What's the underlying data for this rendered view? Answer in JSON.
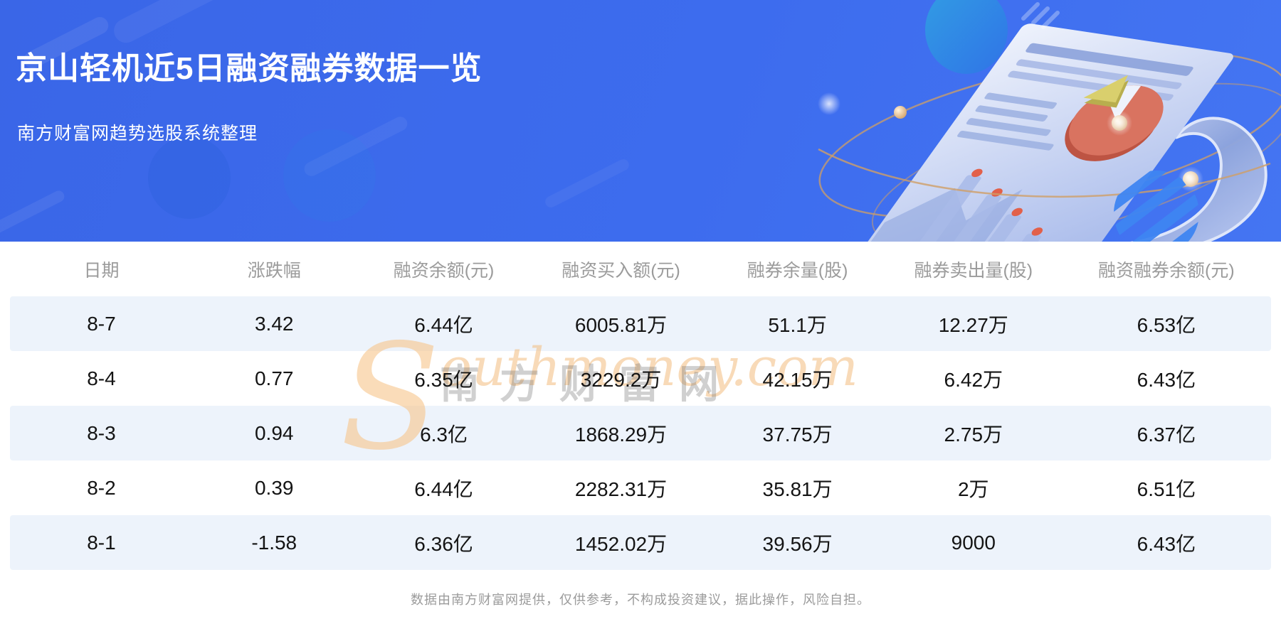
{
  "banner": {
    "title": "京山轻机近5日融资融券数据一览",
    "subtitle": "南方财富网趋势选股系统整理"
  },
  "table": {
    "columns": [
      "日期",
      "涨跌幅",
      "融资余额(元)",
      "融资买入额(元)",
      "融券余量(股)",
      "融券卖出量(股)",
      "融资融券余额(元)"
    ],
    "rows": [
      [
        "8-7",
        "3.42",
        "6.44亿",
        "6005.81万",
        "51.1万",
        "12.27万",
        "6.53亿"
      ],
      [
        "8-4",
        "0.77",
        "6.35亿",
        "3229.2万",
        "42.15万",
        "6.42万",
        "6.43亿"
      ],
      [
        "8-3",
        "0.94",
        "6.3亿",
        "1868.29万",
        "37.75万",
        "2.75万",
        "6.37亿"
      ],
      [
        "8-2",
        "0.39",
        "6.44亿",
        "2282.31万",
        "35.81万",
        "2万",
        "6.51亿"
      ],
      [
        "8-1",
        "-1.58",
        "6.36亿",
        "1452.02万",
        "39.56万",
        "9000",
        "6.43亿"
      ]
    ]
  },
  "watermark": {
    "cn": "南方财富网",
    "en_initial": "S",
    "en_rest": "outhmoney.com"
  },
  "footer": {
    "disclaimer": "数据由南方财富网提供，仅供参考，不构成投资建议，据此操作，风险自担。"
  },
  "colors": {
    "banner_blue": "#3d6cee",
    "stripe_row": "#edf3fb",
    "header_text": "#9b9b9b",
    "cell_text": "#141414",
    "watermark_orange": "#f3bb7d",
    "pie_coral": "#d97360",
    "pie_yellow": "#d9cf6d",
    "orbit_tan": "#cf9f66"
  }
}
